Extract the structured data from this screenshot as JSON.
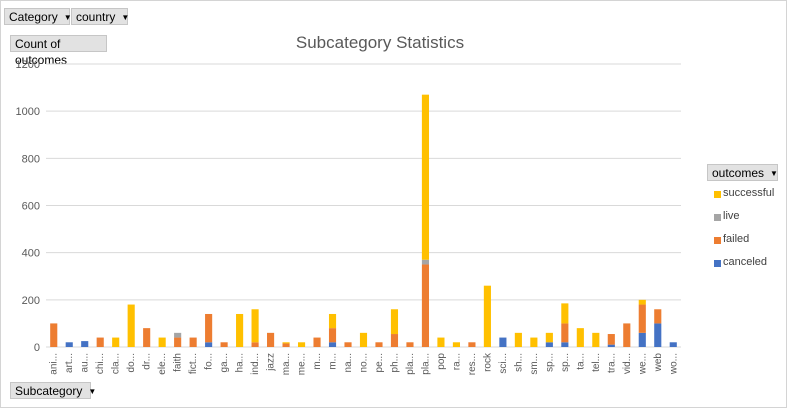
{
  "filters": {
    "category_label": "Category",
    "country_label": "country",
    "values_label": "Count of outcomes",
    "subcategory_label": "Subcategory",
    "legend_field_label": "outcomes"
  },
  "icons": {
    "dropdown": "dropdown-arrow-icon"
  },
  "chart_data": {
    "type": "bar",
    "stacked": true,
    "title": "Subcategory Statistics",
    "xlabel": "",
    "ylabel": "",
    "ylim": [
      0,
      1200
    ],
    "yticks": [
      0,
      200,
      400,
      600,
      800,
      1000,
      1200
    ],
    "grid": true,
    "legend_position": "right",
    "categories": [
      "ani...",
      "art...",
      "au...",
      "chi...",
      "cla...",
      "do...",
      "dr...",
      "ele...",
      "faith",
      "fict...",
      "fo...",
      "ga...",
      "ha...",
      "ind...",
      "jazz",
      "ma...",
      "me...",
      "m...",
      "m...",
      "na...",
      "no...",
      "pe...",
      "ph...",
      "pla...",
      "pla...",
      "pop",
      "ra...",
      "res...",
      "rock",
      "sci...",
      "sh...",
      "sm...",
      "sp...",
      "sp...",
      "ta...",
      "tel...",
      "tra...",
      "vid...",
      "we...",
      "web",
      "wo..."
    ],
    "series": [
      {
        "name": "canceled",
        "color": "#4472c4",
        "values": [
          0,
          20,
          25,
          0,
          0,
          0,
          0,
          0,
          0,
          0,
          20,
          0,
          0,
          0,
          0,
          0,
          0,
          0,
          20,
          0,
          0,
          0,
          0,
          0,
          0,
          0,
          0,
          0,
          0,
          40,
          0,
          0,
          20,
          20,
          0,
          0,
          10,
          0,
          60,
          100,
          20
        ]
      },
      {
        "name": "failed",
        "color": "#ed7d31",
        "values": [
          100,
          0,
          0,
          40,
          0,
          0,
          80,
          0,
          40,
          40,
          120,
          20,
          0,
          20,
          60,
          15,
          0,
          40,
          60,
          20,
          0,
          20,
          55,
          20,
          350,
          0,
          0,
          20,
          0,
          0,
          0,
          0,
          0,
          80,
          0,
          0,
          45,
          100,
          120,
          60,
          0
        ]
      },
      {
        "name": "live",
        "color": "#a5a5a5",
        "values": [
          0,
          0,
          0,
          0,
          0,
          0,
          0,
          0,
          20,
          0,
          0,
          0,
          0,
          0,
          0,
          0,
          0,
          0,
          0,
          0,
          0,
          0,
          0,
          0,
          20,
          0,
          0,
          0,
          0,
          0,
          0,
          0,
          0,
          0,
          0,
          0,
          0,
          0,
          0,
          0,
          0
        ]
      },
      {
        "name": "successful",
        "color": "#ffc000",
        "values": [
          0,
          0,
          0,
          0,
          40,
          180,
          0,
          40,
          0,
          0,
          0,
          0,
          140,
          140,
          0,
          5,
          20,
          0,
          60,
          0,
          60,
          0,
          105,
          0,
          700,
          40,
          20,
          0,
          260,
          0,
          60,
          40,
          40,
          85,
          80,
          60,
          0,
          0,
          20,
          0,
          0
        ]
      }
    ]
  }
}
